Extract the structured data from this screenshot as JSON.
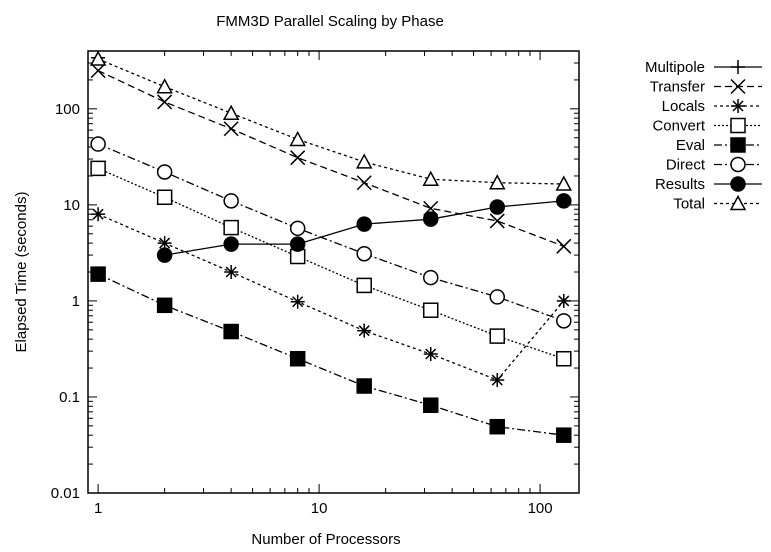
{
  "chart_data": {
    "type": "line",
    "title": "FMM3D Parallel Scaling by Phase",
    "xlabel": "Number of Processors",
    "ylabel": "Elapsed Time (seconds)",
    "xscale": "log",
    "yscale": "log",
    "xlim": [
      0.9,
      150
    ],
    "ylim": [
      0.01,
      400
    ],
    "grid": false,
    "legend_position": "outside-top-right",
    "xticks": [
      {
        "value": 1,
        "label": "1"
      },
      {
        "value": 10,
        "label": "10"
      },
      {
        "value": 100,
        "label": "100"
      }
    ],
    "yticks": [
      {
        "value": 0.01,
        "label": "0.01"
      },
      {
        "value": 0.1,
        "label": "0.1"
      },
      {
        "value": 1,
        "label": "1"
      },
      {
        "value": 10,
        "label": "10"
      },
      {
        "value": 100,
        "label": "100"
      }
    ],
    "series": [
      {
        "name": "Multipole",
        "marker": "plus",
        "line": "solid",
        "x": [
          1
        ],
        "y": [
          340
        ]
      },
      {
        "name": "Transfer",
        "marker": "x",
        "line": "dashed",
        "x": [
          1,
          2,
          4,
          8,
          16,
          32,
          64,
          128
        ],
        "y": [
          250,
          118,
          62,
          31,
          17,
          9.2,
          6.8,
          3.7
        ]
      },
      {
        "name": "Locals",
        "marker": "star",
        "line": "dotted",
        "x": [
          1,
          2,
          4,
          8,
          16,
          32,
          64,
          128
        ],
        "y": [
          8,
          4,
          2,
          0.98,
          0.49,
          0.28,
          0.15,
          1.0
        ]
      },
      {
        "name": "Convert",
        "marker": "square-open",
        "line": "dotted-fine",
        "x": [
          1,
          2,
          4,
          8,
          16,
          32,
          64,
          128
        ],
        "y": [
          24,
          12,
          5.8,
          2.9,
          1.45,
          0.8,
          0.43,
          0.25
        ]
      },
      {
        "name": "Eval",
        "marker": "square-filled",
        "line": "dash-dot",
        "x": [
          1,
          2,
          4,
          8,
          16,
          32,
          64,
          128
        ],
        "y": [
          1.9,
          0.9,
          0.48,
          0.25,
          0.13,
          0.082,
          0.049,
          0.04
        ]
      },
      {
        "name": "Direct",
        "marker": "circle-open",
        "line": "dash-dot",
        "x": [
          1,
          2,
          4,
          8,
          16,
          32,
          64,
          128
        ],
        "y": [
          43,
          22,
          11,
          5.7,
          3.1,
          1.75,
          1.1,
          0.62
        ]
      },
      {
        "name": "Results",
        "marker": "circle-filled",
        "line": "solid",
        "x": [
          2,
          4,
          8,
          16,
          32,
          64,
          128
        ],
        "y": [
          3.0,
          3.9,
          3.9,
          6.3,
          7.1,
          9.5,
          11
        ]
      },
      {
        "name": "Total",
        "marker": "triangle-open",
        "line": "dotted",
        "x": [
          1,
          2,
          4,
          8,
          16,
          32,
          64,
          128
        ],
        "y": [
          330,
          170,
          90,
          48,
          28,
          18.5,
          17,
          16.5
        ]
      }
    ]
  }
}
